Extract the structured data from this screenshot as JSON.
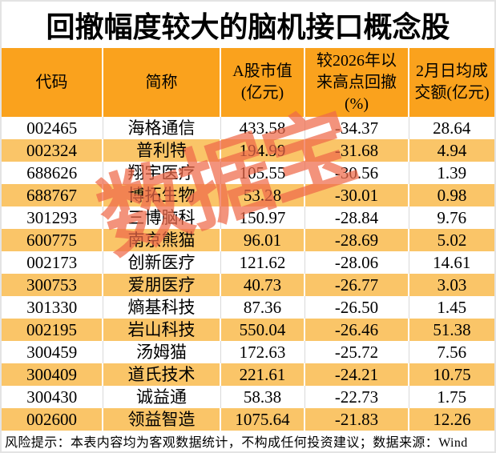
{
  "title": "回撤幅度较大的脑机接口概念股",
  "watermark": {
    "text": "数据宝",
    "color": "#ef6a4a"
  },
  "footer": {
    "note": "风险提示：本表内容均为客观数据统计，不构成任何投资建议；数据来源：Wind"
  },
  "colors": {
    "header_bg": "#faa21d",
    "alt_row_bg": "#fac568",
    "grid_line": "#d9d9d9",
    "frame_border": "#e3e3e3",
    "text": "#000000"
  },
  "chart_data": {
    "type": "table",
    "title": "回撤幅度较大的脑机接口概念股",
    "columns": [
      "代码",
      "简称",
      "A股市值(亿元)",
      "较2026年以来高点回撤(%)",
      "2月日均成交额(亿元)"
    ],
    "rows": [
      [
        "002465",
        "海格通信",
        "433.58",
        "-34.37",
        "28.64"
      ],
      [
        "002324",
        "普利特",
        "194.99",
        "-31.68",
        "4.94"
      ],
      [
        "688626",
        "翔宇医疗",
        "105.55",
        "-30.56",
        "1.39"
      ],
      [
        "688767",
        "博拓生物",
        "53.28",
        "-30.01",
        "0.98"
      ],
      [
        "301293",
        "三博脑科",
        "150.97",
        "-28.84",
        "9.76"
      ],
      [
        "600775",
        "南京熊猫",
        "96.01",
        "-28.69",
        "5.02"
      ],
      [
        "002173",
        "创新医疗",
        "121.62",
        "-28.06",
        "14.61"
      ],
      [
        "300753",
        "爱朋医疗",
        "40.73",
        "-26.77",
        "3.03"
      ],
      [
        "301330",
        "熵基科技",
        "87.36",
        "-26.50",
        "1.45"
      ],
      [
        "002195",
        "岩山科技",
        "550.04",
        "-26.46",
        "51.38"
      ],
      [
        "300459",
        "汤姆猫",
        "172.63",
        "-25.72",
        "7.56"
      ],
      [
        "300409",
        "道氏技术",
        "221.61",
        "-24.21",
        "10.75"
      ],
      [
        "300430",
        "诚益通",
        "58.38",
        "-22.73",
        "1.75"
      ],
      [
        "002600",
        "领益智造",
        "1075.64",
        "-21.83",
        "12.26"
      ]
    ],
    "notes": "alternating rows shaded orange; red diagonal watermark 数据宝; source Wind"
  }
}
